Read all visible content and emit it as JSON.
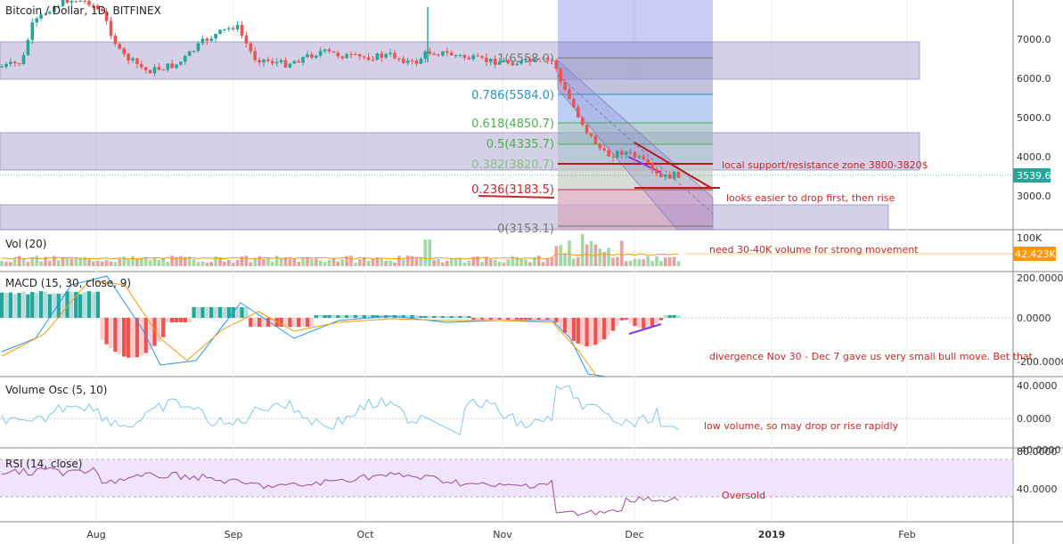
{
  "chart_data": {
    "type": "candlestick",
    "symbol_title": "Bitcoin / Dollar, 1D, BITFINEX",
    "x_ticks": [
      "Aug",
      "Sep",
      "Oct",
      "Nov",
      "Dec",
      "2019",
      "Feb"
    ],
    "price_axis": {
      "ticks": [
        "7000.0",
        "6000.0",
        "5000.0",
        "4000.0",
        "3000.0"
      ],
      "last_price": "3539.6",
      "ylim": [
        2700,
        7950
      ]
    },
    "fib_levels": [
      {
        "label": "1(6558.0)",
        "value": 6558.0,
        "color": "#787878"
      },
      {
        "label": "0.786(5584.0)",
        "value": 5584.0,
        "color": "#2196c8"
      },
      {
        "label": "0.618(4850.7)",
        "value": 4850.7,
        "color": "#4caf50"
      },
      {
        "label": "0.5(4335.7)",
        "value": 4335.7,
        "color": "#4caf50"
      },
      {
        "label": "0.382(3820.7)",
        "value": 3820.7,
        "color": "#81c784"
      },
      {
        "label": "0.236(3183.5)",
        "value": 3183.5,
        "color": "#c62828"
      },
      {
        "label": "0(3153.1)",
        "value": 3153.1,
        "color": "#787878"
      }
    ],
    "price_annotations": [
      "local support/resistance zone 3800-3820$",
      "looks easier to drop first, then rise"
    ],
    "volume": {
      "title": "Vol (20)",
      "axis_top": "100K",
      "last_value": "42.423K",
      "annotation": "need 30-40K volume for strong movement"
    },
    "macd": {
      "title": "MACD (15, 30, close, 9)",
      "ticks": [
        "200.0000",
        "0.0000",
        "-200.0000"
      ],
      "annotation": "divergence Nov 30 - Dec 7 gave us very small bull move. Bet that"
    },
    "volume_osc": {
      "title": "Volume Osc (5, 10)",
      "ticks": [
        "40.0000",
        "0.0000",
        "-40.0000"
      ],
      "annotation": "low volume, so may drop or rise rapidly"
    },
    "rsi": {
      "title": "RSI (14, close)",
      "ticks": [
        "80.0000",
        "40.0000"
      ],
      "annotation": "Oversold"
    }
  },
  "colors": {
    "bull": "#26a69a",
    "bear": "#ef5350",
    "zone": "#9b8ec4",
    "annotation": "#c62828",
    "rsi_fill": "#e9d8fb",
    "macd_line": "#2196f3",
    "signal_line": "#ff9800"
  }
}
